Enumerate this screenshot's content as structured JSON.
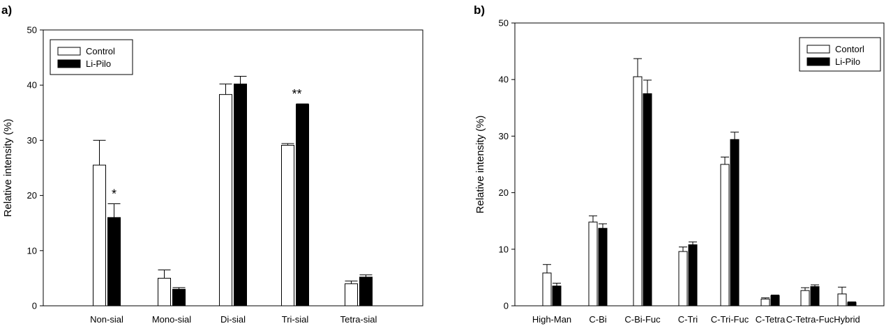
{
  "chart_data": [
    {
      "panel_label": "a)",
      "type": "bar",
      "ylabel": "Relative intensity (%)",
      "xlabel": "",
      "ylim": [
        0,
        50
      ],
      "yticks": [
        "0",
        "10",
        "20",
        "30",
        "40",
        "50"
      ],
      "legend_position": "top-left",
      "categories": [
        "Non-sial",
        "Mono-sial",
        "Di-sial",
        "Tri-sial",
        "Tetra-sial"
      ],
      "series": [
        {
          "name": "Control",
          "fill": "#ffffff",
          "values": [
            25.5,
            5.0,
            38.3,
            29.1,
            4.0
          ],
          "errors": [
            4.5,
            1.5,
            1.9,
            0.3,
            0.5
          ]
        },
        {
          "name": "Li-Pilo",
          "fill": "#000000",
          "values": [
            16.0,
            3.0,
            40.2,
            36.5,
            5.2
          ],
          "errors": [
            2.5,
            0.3,
            1.4,
            0.1,
            0.4
          ]
        }
      ],
      "annotations": [
        {
          "category_index": 0,
          "text": "*"
        },
        {
          "category_index": 3,
          "text": "**"
        }
      ]
    },
    {
      "panel_label": "b)",
      "type": "bar",
      "ylabel": "Relative intensity (%)",
      "xlabel": "",
      "ylim": [
        0,
        50
      ],
      "yticks": [
        "0",
        "10",
        "20",
        "30",
        "40",
        "50"
      ],
      "legend_position": "top-right",
      "categories": [
        "High-Man",
        "C-Bi",
        "C-Bi-Fuc",
        "C-Tri",
        "C-Tri-Fuc",
        "C-Tetra",
        "C-Tetra-Fuc",
        "Hybrid"
      ],
      "series": [
        {
          "name": "Contorl",
          "fill": "#ffffff",
          "values": [
            5.8,
            14.8,
            40.5,
            9.6,
            25.0,
            1.2,
            2.7,
            2.1
          ],
          "errors": [
            1.5,
            1.1,
            3.2,
            0.8,
            1.3,
            0.2,
            0.5,
            1.2
          ]
        },
        {
          "name": "Li-Pilo",
          "fill": "#000000",
          "values": [
            3.5,
            13.7,
            37.5,
            10.8,
            29.4,
            1.8,
            3.4,
            0.6
          ],
          "errors": [
            0.5,
            0.8,
            2.4,
            0.5,
            1.3,
            0.1,
            0.3,
            0.1
          ]
        }
      ],
      "annotations": []
    }
  ]
}
